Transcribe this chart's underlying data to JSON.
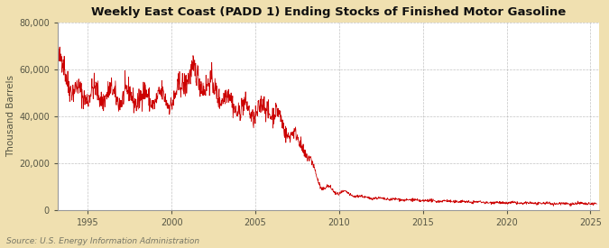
{
  "title": "Weekly East Coast (PADD 1) Ending Stocks of Finished Motor Gasoline",
  "ylabel": "Thousand Barrels",
  "source": "Source: U.S. Energy Information Administration",
  "line_color": "#cc0000",
  "figure_bg": "#f0e0b0",
  "axes_bg": "#ffffff",
  "grid_color": "#aaaaaa",
  "text_color": "#555544",
  "title_color": "#111111",
  "source_color": "#777766",
  "ylim": [
    0,
    80000
  ],
  "yticks": [
    0,
    20000,
    40000,
    60000,
    80000
  ],
  "xlim_start": 1993.2,
  "xlim_end": 2025.5,
  "xticks": [
    1995,
    2000,
    2005,
    2010,
    2015,
    2020,
    2025
  ],
  "figsize": [
    6.75,
    2.75
  ],
  "dpi": 100
}
